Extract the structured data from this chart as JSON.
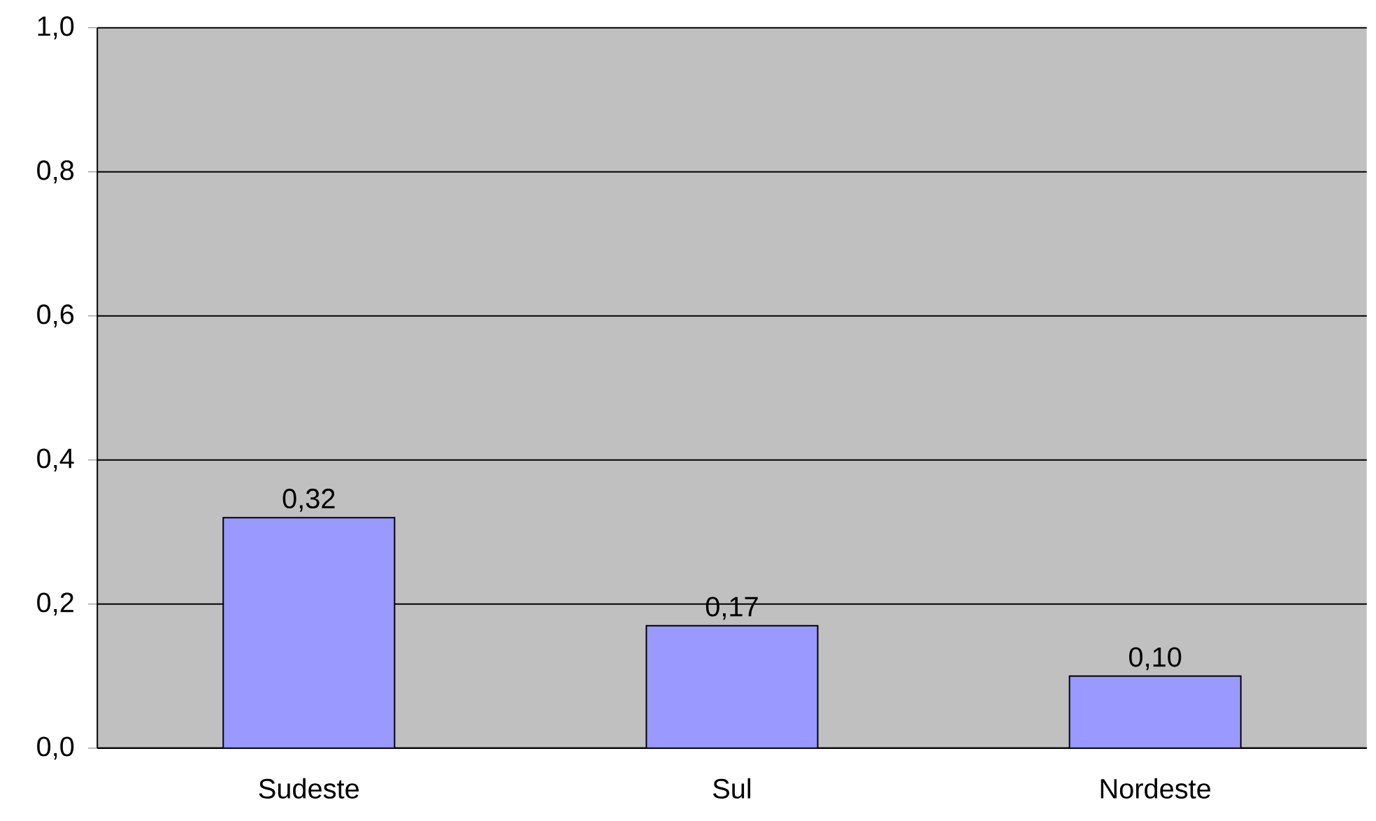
{
  "chart_data": {
    "type": "bar",
    "categories": [
      "Sudeste",
      "Sul",
      "Nordeste"
    ],
    "values": [
      0.32,
      0.17,
      0.1
    ],
    "value_labels": [
      "0,32",
      "0,17",
      "0,10"
    ],
    "color": "#9999ff",
    "ylim": [
      0,
      1
    ],
    "yticks": [
      {
        "value": 0,
        "label": "0,0"
      },
      {
        "value": 0.2,
        "label": "0,2"
      },
      {
        "value": 0.4,
        "label": "0,4"
      },
      {
        "value": 0.6,
        "label": "0,6"
      },
      {
        "value": 0.8,
        "label": "0,8"
      },
      {
        "value": 1,
        "label": "1,0"
      }
    ],
    "grid": "y"
  }
}
